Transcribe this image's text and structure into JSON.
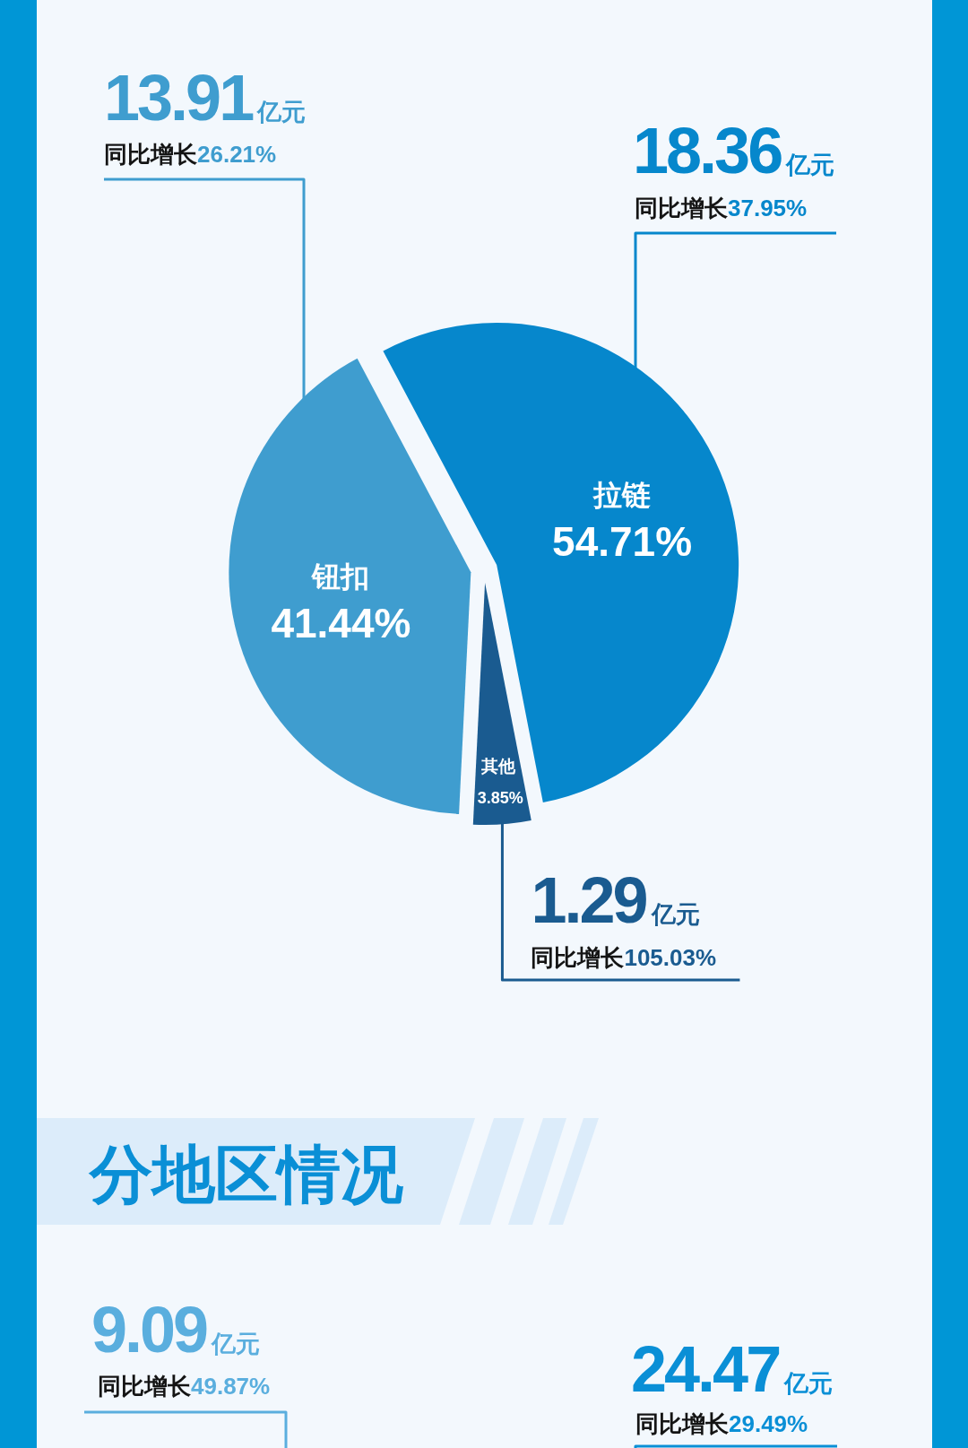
{
  "chart_data": [
    {
      "type": "pie",
      "categories": [
        "钮扣",
        "拉链",
        "其他"
      ],
      "values": [
        41.44,
        54.71,
        3.85
      ],
      "value_labels": [
        "41.44%",
        "54.71%",
        "3.85%"
      ],
      "colors": [
        "#3f9dcf",
        "#0687cc",
        "#1a5b90"
      ],
      "annotations": [
        "13.91亿元",
        "同比增长26.21%",
        "18.36亿元",
        "同比增长37.95%",
        "1.29亿元",
        "同比增长105.03%"
      ]
    },
    {
      "type": "other",
      "title": "分地区情况",
      "annotations": [
        "9.09亿元",
        "同比增长49.87%",
        "24.47亿元",
        "同比增长29.49%"
      ]
    }
  ]
}
